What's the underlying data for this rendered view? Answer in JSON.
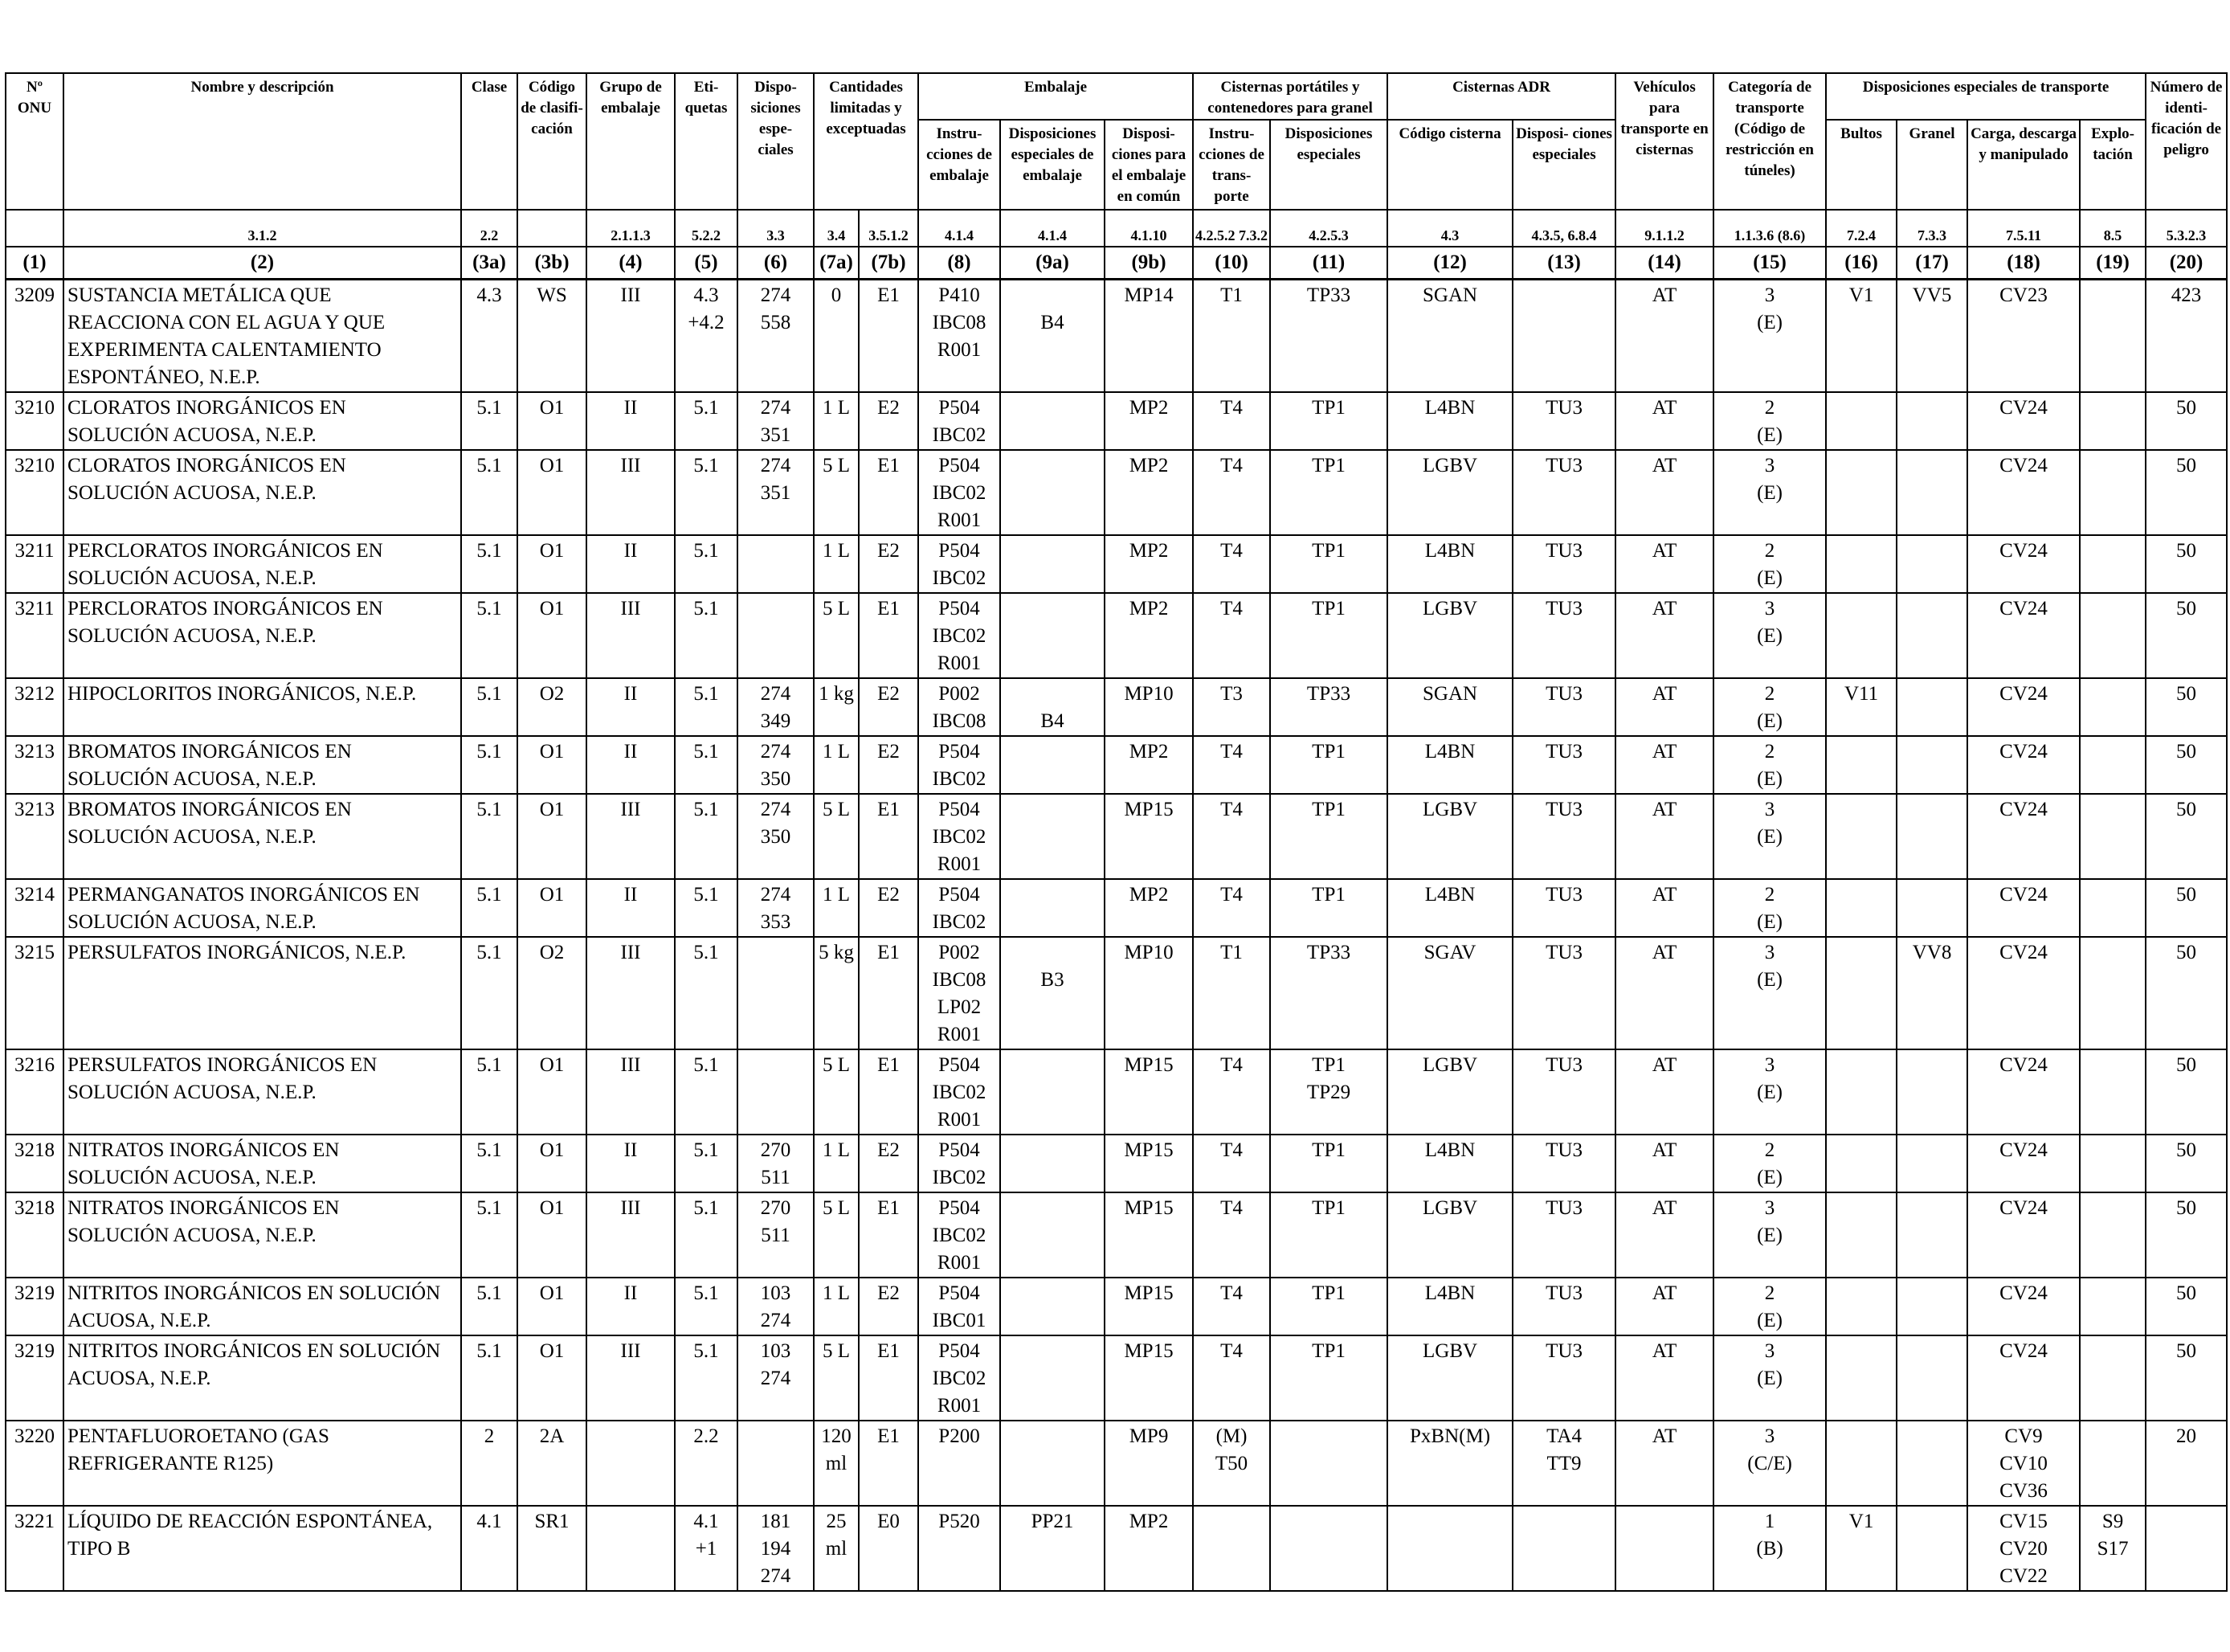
{
  "header": {
    "onu": "Nº ONU",
    "name": "Nombre y descripción",
    "clase": "Clase",
    "codigo": "Código de clasifi- cación",
    "grupo": "Grupo de embalaje",
    "etiquetas": "Eti- quetas",
    "disposiciones": "Dispo- siciones espe- ciales",
    "cantidades": "Cantidades limitadas y exceptuadas",
    "embalaje": "Embalaje",
    "emb_instr": "Instru- cciones de embalaje",
    "emb_disp": "Disposiciones especiales de embalaje",
    "emb_comun": "Disposi- ciones para el embalaje en común",
    "cisternas_port": "Cisternas portátiles y contenedores para granel",
    "cp_instr": "Instru- cciones de trans- porte",
    "cp_disp": "Disposiciones especiales",
    "cisternas_adr": "Cisternas ADR",
    "adr_codigo": "Código cisterna",
    "adr_disp": "Disposi- ciones especiales",
    "vehiculos": "Vehículos para transporte en cisternas",
    "categoria": "Categoría de transporte (Código de restricción en túneles)",
    "disp_transp": "Disposiciones especiales de transporte",
    "bultos": "Bultos",
    "granel": "Granel",
    "carga": "Carga, descarga y manipulado",
    "explotacion": "Explo- tación",
    "numero": "Número de identi- ficación de peligro"
  },
  "refs": [
    "",
    "3.1.2",
    "2.2",
    "",
    "2.1.1.3",
    "5.2.2",
    "3.3",
    "3.4",
    "3.5.1.2",
    "4.1.4",
    "4.1.4",
    "4.1.10",
    "4.2.5.2 7.3.2",
    "4.2.5.3",
    "4.3",
    "4.3.5, 6.8.4",
    "9.1.1.2",
    "1.1.3.6 (8.6)",
    "7.2.4",
    "7.3.3",
    "7.5.11",
    "8.5",
    "5.3.2.3"
  ],
  "colnums": [
    "(1)",
    "(2)",
    "(3a)",
    "(3b)",
    "(4)",
    "(5)",
    "(6)",
    "(7a)",
    "(7b)",
    "(8)",
    "(9a)",
    "(9b)",
    "(10)",
    "(11)",
    "(12)",
    "(13)",
    "(14)",
    "(15)",
    "(16)",
    "(17)",
    "(18)",
    "(19)",
    "(20)"
  ],
  "rows": [
    [
      "3209",
      [
        "SUSTANCIA METÁLICA QUE",
        "REACCIONA CON EL AGUA Y QUE",
        "EXPERIMENTA CALENTAMIENTO",
        "ESPONTÁNEO, N.E.P."
      ],
      [
        "4.3"
      ],
      [
        "WS"
      ],
      [
        "III"
      ],
      [
        "4.3",
        "+4.2"
      ],
      [
        "274",
        "558"
      ],
      [
        "0"
      ],
      [
        "E1"
      ],
      [
        "P410",
        "IBC08",
        "R001"
      ],
      [
        "",
        "B4"
      ],
      [
        "MP14"
      ],
      [
        "T1"
      ],
      [
        "TP33"
      ],
      [
        "SGAN"
      ],
      [
        ""
      ],
      [
        "AT"
      ],
      [
        "3",
        "(E)"
      ],
      [
        "V1"
      ],
      [
        "VV5"
      ],
      [
        "CV23"
      ],
      [
        ""
      ],
      [
        "423"
      ]
    ],
    [
      "3210",
      [
        "CLORATOS INORGÁNICOS EN",
        "SOLUCIÓN ACUOSA, N.E.P."
      ],
      [
        "5.1"
      ],
      [
        "O1"
      ],
      [
        "II"
      ],
      [
        "5.1"
      ],
      [
        "274",
        "351"
      ],
      [
        "1 L"
      ],
      [
        "E2"
      ],
      [
        "P504",
        "IBC02"
      ],
      [
        ""
      ],
      [
        "MP2"
      ],
      [
        "T4"
      ],
      [
        "TP1"
      ],
      [
        "L4BN"
      ],
      [
        "TU3"
      ],
      [
        "AT"
      ],
      [
        "2",
        "(E)"
      ],
      [
        ""
      ],
      [
        ""
      ],
      [
        "CV24"
      ],
      [
        ""
      ],
      [
        "50"
      ]
    ],
    [
      "3210",
      [
        "CLORATOS INORGÁNICOS EN",
        "SOLUCIÓN ACUOSA, N.E.P."
      ],
      [
        "5.1"
      ],
      [
        "O1"
      ],
      [
        "III"
      ],
      [
        "5.1"
      ],
      [
        "274",
        "351"
      ],
      [
        "5 L"
      ],
      [
        "E1"
      ],
      [
        "P504",
        "IBC02",
        "R001"
      ],
      [
        ""
      ],
      [
        "MP2"
      ],
      [
        "T4"
      ],
      [
        "TP1"
      ],
      [
        "LGBV"
      ],
      [
        "TU3"
      ],
      [
        "AT"
      ],
      [
        "3",
        "(E)"
      ],
      [
        ""
      ],
      [
        ""
      ],
      [
        "CV24"
      ],
      [
        ""
      ],
      [
        "50"
      ]
    ],
    [
      "3211",
      [
        "PERCLORATOS INORGÁNICOS EN",
        "SOLUCIÓN ACUOSA, N.E.P."
      ],
      [
        "5.1"
      ],
      [
        "O1"
      ],
      [
        "II"
      ],
      [
        "5.1"
      ],
      [
        ""
      ],
      [
        "1 L"
      ],
      [
        "E2"
      ],
      [
        "P504",
        "IBC02"
      ],
      [
        ""
      ],
      [
        "MP2"
      ],
      [
        "T4"
      ],
      [
        "TP1"
      ],
      [
        "L4BN"
      ],
      [
        "TU3"
      ],
      [
        "AT"
      ],
      [
        "2",
        "(E)"
      ],
      [
        ""
      ],
      [
        ""
      ],
      [
        "CV24"
      ],
      [
        ""
      ],
      [
        "50"
      ]
    ],
    [
      "3211",
      [
        "PERCLORATOS INORGÁNICOS EN",
        "SOLUCIÓN ACUOSA, N.E.P."
      ],
      [
        "5.1"
      ],
      [
        "O1"
      ],
      [
        "III"
      ],
      [
        "5.1"
      ],
      [
        ""
      ],
      [
        "5 L"
      ],
      [
        "E1"
      ],
      [
        "P504",
        "IBC02",
        "R001"
      ],
      [
        ""
      ],
      [
        "MP2"
      ],
      [
        "T4"
      ],
      [
        "TP1"
      ],
      [
        "LGBV"
      ],
      [
        "TU3"
      ],
      [
        "AT"
      ],
      [
        "3",
        "(E)"
      ],
      [
        ""
      ],
      [
        ""
      ],
      [
        "CV24"
      ],
      [
        ""
      ],
      [
        "50"
      ]
    ],
    [
      "3212",
      [
        "HIPOCLORITOS INORGÁNICOS, N.E.P."
      ],
      [
        "5.1"
      ],
      [
        "O2"
      ],
      [
        "II"
      ],
      [
        "5.1"
      ],
      [
        "274",
        "349"
      ],
      [
        "1 kg"
      ],
      [
        "E2"
      ],
      [
        "P002",
        "IBC08"
      ],
      [
        "",
        "B4"
      ],
      [
        "MP10"
      ],
      [
        "T3"
      ],
      [
        "TP33"
      ],
      [
        "SGAN"
      ],
      [
        "TU3"
      ],
      [
        "AT"
      ],
      [
        "2",
        "(E)"
      ],
      [
        "V11"
      ],
      [
        ""
      ],
      [
        "CV24"
      ],
      [
        ""
      ],
      [
        "50"
      ]
    ],
    [
      "3213",
      [
        "BROMATOS INORGÁNICOS EN",
        "SOLUCIÓN ACUOSA, N.E.P."
      ],
      [
        "5.1"
      ],
      [
        "O1"
      ],
      [
        "II"
      ],
      [
        "5.1"
      ],
      [
        "274",
        "350"
      ],
      [
        "1 L"
      ],
      [
        "E2"
      ],
      [
        "P504",
        "IBC02"
      ],
      [
        ""
      ],
      [
        "MP2"
      ],
      [
        "T4"
      ],
      [
        "TP1"
      ],
      [
        "L4BN"
      ],
      [
        "TU3"
      ],
      [
        "AT"
      ],
      [
        "2",
        "(E)"
      ],
      [
        ""
      ],
      [
        ""
      ],
      [
        "CV24"
      ],
      [
        ""
      ],
      [
        "50"
      ]
    ],
    [
      "3213",
      [
        "BROMATOS INORGÁNICOS EN",
        "SOLUCIÓN ACUOSA, N.E.P."
      ],
      [
        "5.1"
      ],
      [
        "O1"
      ],
      [
        "III"
      ],
      [
        "5.1"
      ],
      [
        "274",
        "350"
      ],
      [
        "5 L"
      ],
      [
        "E1"
      ],
      [
        "P504",
        "IBC02",
        "R001"
      ],
      [
        ""
      ],
      [
        "MP15"
      ],
      [
        "T4"
      ],
      [
        "TP1"
      ],
      [
        "LGBV"
      ],
      [
        "TU3"
      ],
      [
        "AT"
      ],
      [
        "3",
        "(E)"
      ],
      [
        ""
      ],
      [
        ""
      ],
      [
        "CV24"
      ],
      [
        ""
      ],
      [
        "50"
      ]
    ],
    [
      "3214",
      [
        "PERMANGANATOS INORGÁNICOS EN",
        "SOLUCIÓN ACUOSA, N.E.P."
      ],
      [
        "5.1"
      ],
      [
        "O1"
      ],
      [
        "II"
      ],
      [
        "5.1"
      ],
      [
        "274",
        "353"
      ],
      [
        "1 L"
      ],
      [
        "E2"
      ],
      [
        "P504",
        "IBC02"
      ],
      [
        ""
      ],
      [
        "MP2"
      ],
      [
        "T4"
      ],
      [
        "TP1"
      ],
      [
        "L4BN"
      ],
      [
        "TU3"
      ],
      [
        "AT"
      ],
      [
        "2",
        "(E)"
      ],
      [
        ""
      ],
      [
        ""
      ],
      [
        "CV24"
      ],
      [
        ""
      ],
      [
        "50"
      ]
    ],
    [
      "3215",
      [
        "PERSULFATOS INORGÁNICOS, N.E.P."
      ],
      [
        "5.1"
      ],
      [
        "O2"
      ],
      [
        "III"
      ],
      [
        "5.1"
      ],
      [
        ""
      ],
      [
        "5 kg"
      ],
      [
        "E1"
      ],
      [
        "P002",
        "IBC08",
        "LP02",
        "R001"
      ],
      [
        "",
        "B3"
      ],
      [
        "MP10"
      ],
      [
        "T1"
      ],
      [
        "TP33"
      ],
      [
        "SGAV"
      ],
      [
        "TU3"
      ],
      [
        "AT"
      ],
      [
        "3",
        "(E)"
      ],
      [
        ""
      ],
      [
        "VV8"
      ],
      [
        "CV24"
      ],
      [
        ""
      ],
      [
        "50"
      ]
    ],
    [
      "3216",
      [
        "PERSULFATOS INORGÁNICOS EN",
        "SOLUCIÓN ACUOSA, N.E.P."
      ],
      [
        "5.1"
      ],
      [
        "O1"
      ],
      [
        "III"
      ],
      [
        "5.1"
      ],
      [
        ""
      ],
      [
        "5 L"
      ],
      [
        "E1"
      ],
      [
        "P504",
        "IBC02",
        "R001"
      ],
      [
        ""
      ],
      [
        "MP15"
      ],
      [
        "T4"
      ],
      [
        "TP1",
        "TP29"
      ],
      [
        "LGBV"
      ],
      [
        "TU3"
      ],
      [
        "AT"
      ],
      [
        "3",
        "(E)"
      ],
      [
        ""
      ],
      [
        ""
      ],
      [
        "CV24"
      ],
      [
        ""
      ],
      [
        "50"
      ]
    ],
    [
      "3218",
      [
        "NITRATOS INORGÁNICOS EN",
        "SOLUCIÓN ACUOSA, N.E.P."
      ],
      [
        "5.1"
      ],
      [
        "O1"
      ],
      [
        "II"
      ],
      [
        "5.1"
      ],
      [
        "270",
        "511"
      ],
      [
        "1 L"
      ],
      [
        "E2"
      ],
      [
        "P504",
        "IBC02"
      ],
      [
        ""
      ],
      [
        "MP15"
      ],
      [
        "T4"
      ],
      [
        "TP1"
      ],
      [
        "L4BN"
      ],
      [
        "TU3"
      ],
      [
        "AT"
      ],
      [
        "2",
        "(E)"
      ],
      [
        ""
      ],
      [
        ""
      ],
      [
        "CV24"
      ],
      [
        ""
      ],
      [
        "50"
      ]
    ],
    [
      "3218",
      [
        "NITRATOS INORGÁNICOS EN",
        "SOLUCIÓN ACUOSA, N.E.P."
      ],
      [
        "5.1"
      ],
      [
        "O1"
      ],
      [
        "III"
      ],
      [
        "5.1"
      ],
      [
        "270",
        "511"
      ],
      [
        "5 L"
      ],
      [
        "E1"
      ],
      [
        "P504",
        "IBC02",
        "R001"
      ],
      [
        ""
      ],
      [
        "MP15"
      ],
      [
        "T4"
      ],
      [
        "TP1"
      ],
      [
        "LGBV"
      ],
      [
        "TU3"
      ],
      [
        "AT"
      ],
      [
        "3",
        "(E)"
      ],
      [
        ""
      ],
      [
        ""
      ],
      [
        "CV24"
      ],
      [
        ""
      ],
      [
        "50"
      ]
    ],
    [
      "3219",
      [
        "NITRITOS INORGÁNICOS EN SOLUCIÓN",
        "ACUOSA, N.E.P."
      ],
      [
        "5.1"
      ],
      [
        "O1"
      ],
      [
        "II"
      ],
      [
        "5.1"
      ],
      [
        "103",
        "274"
      ],
      [
        "1 L"
      ],
      [
        "E2"
      ],
      [
        "P504",
        "IBC01"
      ],
      [
        ""
      ],
      [
        "MP15"
      ],
      [
        "T4"
      ],
      [
        "TP1"
      ],
      [
        "L4BN"
      ],
      [
        "TU3"
      ],
      [
        "AT"
      ],
      [
        "2",
        "(E)"
      ],
      [
        ""
      ],
      [
        ""
      ],
      [
        "CV24"
      ],
      [
        ""
      ],
      [
        "50"
      ]
    ],
    [
      "3219",
      [
        "NITRITOS INORGÁNICOS EN SOLUCIÓN",
        "ACUOSA, N.E.P."
      ],
      [
        "5.1"
      ],
      [
        "O1"
      ],
      [
        "III"
      ],
      [
        "5.1"
      ],
      [
        "103",
        "274"
      ],
      [
        "5 L"
      ],
      [
        "E1"
      ],
      [
        "P504",
        "IBC02",
        "R001"
      ],
      [
        ""
      ],
      [
        "MP15"
      ],
      [
        "T4"
      ],
      [
        "TP1"
      ],
      [
        "LGBV"
      ],
      [
        "TU3"
      ],
      [
        "AT"
      ],
      [
        "3",
        "(E)"
      ],
      [
        ""
      ],
      [
        ""
      ],
      [
        "CV24"
      ],
      [
        ""
      ],
      [
        "50"
      ]
    ],
    [
      "3220",
      [
        "PENTAFLUOROETANO (GAS",
        "REFRIGERANTE R125)"
      ],
      [
        "2"
      ],
      [
        "2A"
      ],
      [
        ""
      ],
      [
        "2.2"
      ],
      [
        ""
      ],
      [
        "120",
        "ml"
      ],
      [
        "E1"
      ],
      [
        "P200"
      ],
      [
        ""
      ],
      [
        "MP9"
      ],
      [
        "(M)",
        "T50"
      ],
      [
        ""
      ],
      [
        "PxBN(M)"
      ],
      [
        "TA4",
        "TT9"
      ],
      [
        "AT"
      ],
      [
        "3",
        "(C/E)"
      ],
      [
        ""
      ],
      [
        ""
      ],
      [
        "CV9",
        "CV10",
        "CV36"
      ],
      [
        ""
      ],
      [
        "20"
      ]
    ],
    [
      "3221",
      [
        "LÍQUIDO DE REACCIÓN ESPONTÁNEA,",
        "TIPO B"
      ],
      [
        "4.1"
      ],
      [
        "SR1"
      ],
      [
        ""
      ],
      [
        "4.1",
        "+1"
      ],
      [
        "181",
        "194",
        "274"
      ],
      [
        "25",
        "ml"
      ],
      [
        "E0"
      ],
      [
        "P520"
      ],
      [
        "PP21"
      ],
      [
        "MP2"
      ],
      [
        ""
      ],
      [
        ""
      ],
      [
        ""
      ],
      [
        ""
      ],
      [
        ""
      ],
      [
        "1",
        "(B)"
      ],
      [
        "V1"
      ],
      [
        ""
      ],
      [
        "CV15",
        "CV20",
        "CV22"
      ],
      [
        "S9",
        "S17"
      ],
      [
        ""
      ]
    ]
  ]
}
